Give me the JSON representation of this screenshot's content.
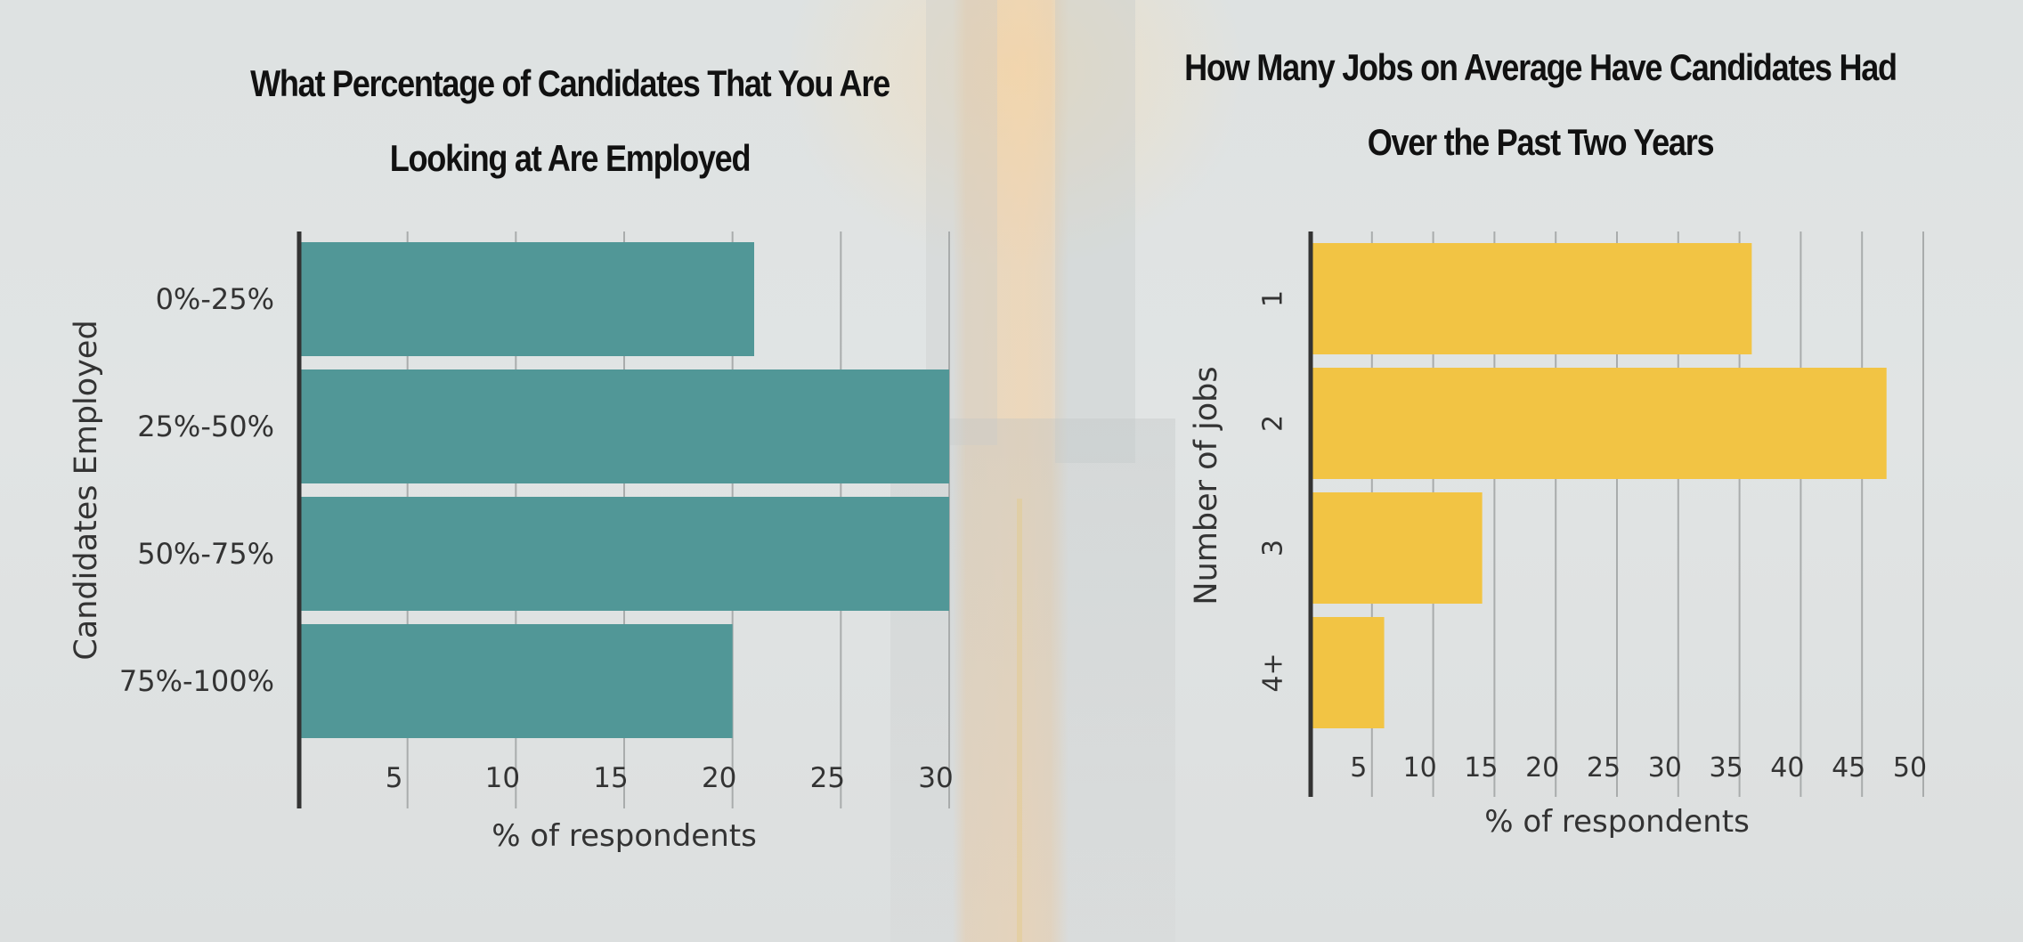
{
  "colors": {
    "left_bar": "#519797",
    "right_bar": "#f2c444",
    "axis": "#333333",
    "grid": "#a9acac",
    "text": "#333333"
  },
  "chart_data": [
    {
      "type": "bar",
      "orientation": "horizontal",
      "title": "What Percentage of Candidates That You Are Looking at Are Employed",
      "title_lines": [
        "What Percentage of Candidates That You Are",
        "Looking at Are Employed"
      ],
      "categories": [
        "0%-25%",
        "25%-50%",
        "50%-75%",
        "75%-100%"
      ],
      "values": [
        21,
        30,
        30,
        20
      ],
      "xlabel": "% of respondents",
      "ylabel": "Candidates Employed",
      "xlim": [
        0,
        30
      ],
      "xticks": [
        5,
        10,
        15,
        20,
        25,
        30
      ],
      "grid": true
    },
    {
      "type": "bar",
      "orientation": "horizontal",
      "title": "How Many Jobs on Average Have Candidates Had Over the Past Two Years",
      "title_lines": [
        "How Many Jobs on Average Have Candidates Had",
        "Over the Past Two Years"
      ],
      "categories": [
        "1",
        "2",
        "3",
        "4+"
      ],
      "values": [
        36,
        47,
        14,
        6
      ],
      "xlabel": "% of respondents",
      "ylabel": "Number of jobs",
      "xlim": [
        0,
        50
      ],
      "xticks": [
        5,
        10,
        15,
        20,
        25,
        30,
        35,
        40,
        45,
        50
      ],
      "grid": true
    }
  ]
}
